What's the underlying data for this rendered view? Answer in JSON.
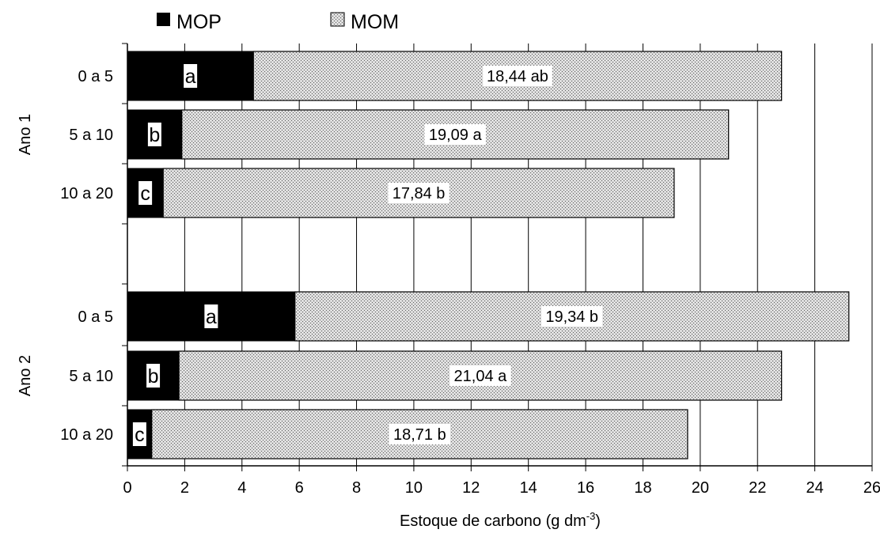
{
  "chart_data": {
    "type": "bar",
    "orientation": "horizontal",
    "stacked": true,
    "legend": {
      "position": "top",
      "items": [
        {
          "name": "MOP",
          "fill": "black"
        },
        {
          "name": "MOM",
          "fill": "hatched-gray"
        }
      ]
    },
    "colors": {
      "MOP": "#000000",
      "MOM": "#c8c8c8"
    },
    "xlabel": "Estoque de carbono (g dm⁻³)",
    "xlabel_main": "Estoque de carbono (g dm",
    "xlabel_sup": "-3",
    "xlabel_close": ")",
    "xlim": [
      0,
      26
    ],
    "xticks": [
      "0",
      "2",
      "4",
      "6",
      "8",
      "10",
      "12",
      "14",
      "16",
      "18",
      "20",
      "22",
      "24",
      "26"
    ],
    "grid": "vertical",
    "groups": [
      {
        "name": "Ano 1",
        "rows": [
          {
            "category": "0 a 5",
            "MOP": 4.4,
            "MOM": 18.44,
            "mop_label": "a",
            "mom_label": "18,44 ab"
          },
          {
            "category": "5 a 10",
            "MOP": 1.9,
            "MOM": 19.09,
            "mop_label": "b",
            "mom_label": "19,09 a"
          },
          {
            "category": "10 a 20",
            "MOP": 1.25,
            "MOM": 17.84,
            "mop_label": "c",
            "mom_label": "17,84 b"
          }
        ]
      },
      {
        "name": "Ano 2",
        "rows": [
          {
            "category": "0 a 5",
            "MOP": 5.85,
            "MOM": 19.34,
            "mop_label": "a",
            "mom_label": "19,34 b"
          },
          {
            "category": "5 a 10",
            "MOP": 1.8,
            "MOM": 21.04,
            "mop_label": "b",
            "mom_label": "21,04 a"
          },
          {
            "category": "10 a 20",
            "MOP": 0.85,
            "MOM": 18.71,
            "mop_label": "c",
            "mom_label": "18,71 b"
          }
        ]
      }
    ]
  }
}
